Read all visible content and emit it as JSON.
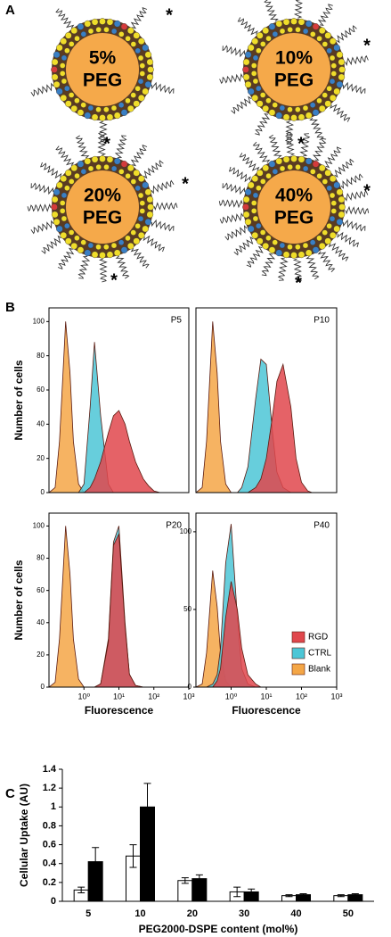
{
  "panel_a": {
    "label": "A",
    "marker": "*",
    "items": [
      {
        "line1": "5%",
        "line2": "PEG"
      },
      {
        "line1": "10%",
        "line2": "PEG"
      },
      {
        "line1": "20%",
        "line2": "PEG"
      },
      {
        "line1": "40%",
        "line2": "PEG"
      }
    ]
  },
  "panel_b_label": "B",
  "panel_c_label": "C",
  "chart_data": [
    {
      "type": "area",
      "title": "P5",
      "y_label": "Number of cells",
      "log_x": true,
      "x": [
        0.1,
        0.15,
        0.2,
        0.3,
        0.4,
        0.5,
        0.7,
        1,
        1.5,
        2,
        3,
        5,
        7,
        10,
        15,
        20,
        30,
        50,
        70,
        100,
        150,
        200,
        300
      ],
      "xlim": [
        0.1,
        1000
      ],
      "ylim": [
        0,
        108
      ],
      "yticks": [
        0,
        20,
        40,
        60,
        80,
        100
      ],
      "series": [
        {
          "name": "RGD",
          "color": "#e0474c",
          "values": [
            0,
            0,
            0,
            0,
            0,
            0,
            0,
            0,
            3,
            8,
            18,
            35,
            45,
            48,
            40,
            30,
            18,
            8,
            4,
            1,
            0,
            0,
            0
          ]
        },
        {
          "name": "CTRL",
          "color": "#4cc6d6",
          "values": [
            0,
            0,
            0,
            0,
            0,
            0,
            0,
            5,
            50,
            88,
            45,
            5,
            0,
            0,
            0,
            0,
            0,
            0,
            0,
            0,
            0,
            0,
            0
          ]
        },
        {
          "name": "Blank",
          "color": "#f4a646",
          "values": [
            0,
            3,
            30,
            100,
            70,
            30,
            5,
            0,
            0,
            0,
            0,
            0,
            0,
            0,
            0,
            0,
            0,
            0,
            0,
            0,
            0,
            0,
            0
          ]
        }
      ]
    },
    {
      "type": "area",
      "title": "P10",
      "log_x": true,
      "x": [
        0.1,
        0.15,
        0.2,
        0.3,
        0.4,
        0.5,
        0.7,
        1,
        1.5,
        2,
        3,
        5,
        7,
        10,
        15,
        20,
        30,
        50,
        70,
        100,
        150,
        200,
        300
      ],
      "xlim": [
        0.1,
        1000
      ],
      "ylim": [
        0,
        108
      ],
      "series": [
        {
          "name": "RGD",
          "color": "#e0474c",
          "values": [
            0,
            0,
            0,
            0,
            0,
            0,
            0,
            0,
            0,
            0,
            0,
            3,
            8,
            20,
            45,
            65,
            75,
            50,
            20,
            6,
            1,
            0,
            0
          ]
        },
        {
          "name": "CTRL",
          "color": "#4cc6d6",
          "values": [
            0,
            0,
            0,
            0,
            0,
            0,
            0,
            0,
            0,
            3,
            15,
            55,
            78,
            75,
            35,
            12,
            3,
            0,
            0,
            0,
            0,
            0,
            0
          ]
        },
        {
          "name": "Blank",
          "color": "#f4a646",
          "values": [
            0,
            3,
            30,
            100,
            70,
            30,
            5,
            0,
            0,
            0,
            0,
            0,
            0,
            0,
            0,
            0,
            0,
            0,
            0,
            0,
            0,
            0,
            0
          ]
        }
      ]
    },
    {
      "type": "area",
      "title": "P20",
      "y_label": "Number of cells",
      "x_label": "Fluorescence",
      "log_x": true,
      "x": [
        0.1,
        0.15,
        0.2,
        0.3,
        0.4,
        0.5,
        0.7,
        1,
        1.5,
        2,
        3,
        5,
        7,
        10,
        15,
        20,
        30,
        50,
        70,
        100,
        150,
        200,
        300
      ],
      "xlim": [
        0.1,
        1000
      ],
      "ylim": [
        0,
        108
      ],
      "yticks": [
        0,
        20,
        40,
        60,
        80,
        100
      ],
      "xticks": [
        {
          "value": 1,
          "label": "10⁰"
        },
        {
          "value": 10,
          "label": "10¹"
        },
        {
          "value": 100,
          "label": "10²"
        },
        {
          "value": 1000,
          "label": "10³"
        }
      ],
      "series": [
        {
          "name": "RGD",
          "color": "#e0474c",
          "values": [
            0,
            0,
            0,
            0,
            0,
            0,
            0,
            0,
            0,
            0,
            2,
            28,
            88,
            95,
            38,
            8,
            1,
            0,
            0,
            0,
            0,
            0,
            0
          ]
        },
        {
          "name": "CTRL",
          "color": "#4cc6d6",
          "values": [
            0,
            0,
            0,
            0,
            0,
            0,
            0,
            0,
            0,
            0,
            2,
            30,
            90,
            100,
            40,
            8,
            1,
            0,
            0,
            0,
            0,
            0,
            0
          ]
        },
        {
          "name": "Blank",
          "color": "#f4a646",
          "values": [
            0,
            3,
            30,
            100,
            70,
            30,
            5,
            0,
            0,
            0,
            0,
            0,
            0,
            0,
            0,
            0,
            0,
            0,
            0,
            0,
            0,
            0,
            0
          ]
        }
      ]
    },
    {
      "type": "area",
      "title": "P40",
      "x_label": "Fluorescence",
      "log_x": true,
      "legend": "lower right",
      "x": [
        0.1,
        0.15,
        0.2,
        0.3,
        0.4,
        0.5,
        0.7,
        1,
        1.5,
        2,
        3,
        5,
        7,
        10,
        15,
        20,
        30,
        50,
        70,
        100,
        150,
        200,
        300
      ],
      "xlim": [
        0.1,
        1000
      ],
      "ylim": [
        0,
        112
      ],
      "yticks": [
        0,
        50,
        100
      ],
      "xticks": [
        {
          "value": 1,
          "label": "10⁰"
        },
        {
          "value": 10,
          "label": "10¹"
        },
        {
          "value": 100,
          "label": "10²"
        },
        {
          "value": 1000,
          "label": "10³"
        }
      ],
      "series": [
        {
          "name": "RGD",
          "color": "#e0474c",
          "values": [
            0,
            0,
            0,
            0,
            4,
            12,
            45,
            68,
            50,
            25,
            8,
            2,
            0,
            0,
            0,
            0,
            0,
            0,
            0,
            0,
            0,
            0,
            0
          ]
        },
        {
          "name": "CTRL",
          "color": "#4cc6d6",
          "values": [
            0,
            0,
            0,
            2,
            8,
            25,
            80,
            105,
            45,
            12,
            2,
            0,
            0,
            0,
            0,
            0,
            0,
            0,
            0,
            0,
            0,
            0,
            0
          ]
        },
        {
          "name": "Blank",
          "color": "#f4a646",
          "values": [
            0,
            2,
            22,
            75,
            52,
            22,
            4,
            0,
            0,
            0,
            0,
            0,
            0,
            0,
            0,
            0,
            0,
            0,
            0,
            0,
            0,
            0,
            0
          ]
        }
      ]
    },
    {
      "type": "bar",
      "y_label": "Cellular Uptake (AU)",
      "x_label": "PEG2000-DSPE content (mol%)",
      "categories": [
        "5",
        "10",
        "20",
        "30",
        "40",
        "50"
      ],
      "ylim": [
        0,
        1.4
      ],
      "yticks": [
        0,
        0.2,
        0.4,
        0.6,
        0.8,
        1,
        1.2,
        1.4
      ],
      "series": [
        {
          "color": "#ffffff",
          "values": [
            0.12,
            0.48,
            0.22,
            0.1,
            0.06,
            0.06
          ],
          "errors": [
            0.03,
            0.12,
            0.03,
            0.05,
            0.01,
            0.01
          ]
        },
        {
          "color": "#000000",
          "values": [
            0.42,
            1.0,
            0.24,
            0.1,
            0.07,
            0.07
          ],
          "errors": [
            0.15,
            0.25,
            0.04,
            0.03,
            0.01,
            0.01
          ]
        }
      ]
    }
  ]
}
